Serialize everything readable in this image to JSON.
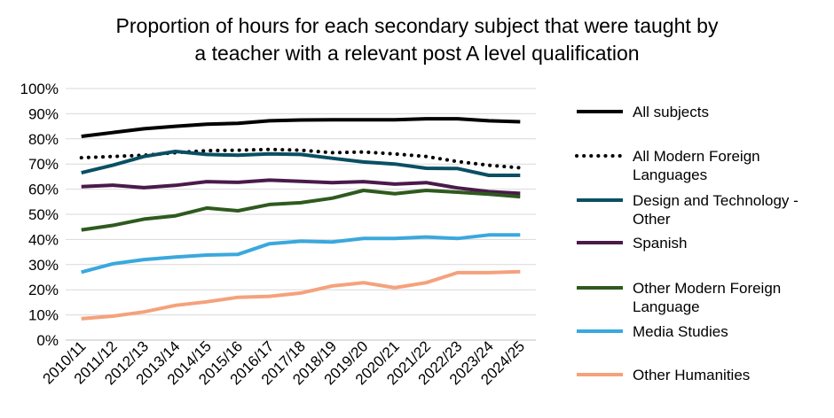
{
  "chart_data": {
    "type": "line",
    "title": [
      "Proportion of hours for each secondary subject that were taught by",
      "a teacher with a relevant post A level qualification"
    ],
    "xlabel": "",
    "ylabel": "",
    "ylim": [
      0,
      100
    ],
    "yticks": [
      "0%",
      "10%",
      "20%",
      "30%",
      "40%",
      "50%",
      "60%",
      "70%",
      "80%",
      "90%",
      "100%"
    ],
    "categories": [
      "2010/11",
      "2011/12",
      "2012/13",
      "2013/14",
      "2014/15",
      "2015/16",
      "2016/17",
      "2017/18",
      "2018/19",
      "2019/20",
      "2020/21",
      "2021/22",
      "2022/23",
      "2023/24",
      "2024/25"
    ],
    "grid": "horizontal",
    "legend_position": "right",
    "series": [
      {
        "name": "All subjects",
        "color": "#000000",
        "style": "solid",
        "legend_lines": [
          "All subjects"
        ],
        "values": [
          81,
          82.5,
          84,
          85,
          85.8,
          86.2,
          87.2,
          87.5,
          87.6,
          87.6,
          87.6,
          88,
          88,
          87.2,
          86.8
        ]
      },
      {
        "name": "All Modern Foreign Languages",
        "color": "#000000",
        "style": "dotted",
        "legend_lines": [
          "All Modern Foreign",
          "Languages"
        ],
        "values": [
          72.5,
          73,
          73.5,
          74.5,
          75.3,
          75.5,
          75.8,
          75.5,
          74.5,
          74.8,
          74,
          73,
          71,
          69.5,
          68.5
        ]
      },
      {
        "name": "Design and Technology - Other",
        "color": "#0a4f63",
        "style": "solid",
        "legend_lines": [
          "Design and Technology -",
          "Other"
        ],
        "values": [
          66.5,
          69.5,
          73,
          75,
          73.8,
          73.5,
          74,
          73.8,
          72.3,
          70.8,
          70,
          68.3,
          68.2,
          65.5,
          65.5
        ]
      },
      {
        "name": "Spanish",
        "color": "#4a1a4a",
        "style": "solid",
        "legend_lines": [
          "Spanish"
        ],
        "values": [
          61,
          61.6,
          60.6,
          61.5,
          63,
          62.7,
          63.6,
          63.1,
          62.6,
          63,
          62,
          62.6,
          60.5,
          59,
          58.3
        ]
      },
      {
        "name": "Other Modern Foreign Language",
        "color": "#2e5a1e",
        "style": "solid",
        "legend_lines": [
          "Other Modern Foreign",
          "Language"
        ],
        "values": [
          43.8,
          45.6,
          48.1,
          49.4,
          52.5,
          51.4,
          53.9,
          54.6,
          56.4,
          59.5,
          58.2,
          59.5,
          58.8,
          58,
          57
        ]
      },
      {
        "name": "Media Studies",
        "color": "#3aa8dd",
        "style": "solid",
        "legend_lines": [
          "Media Studies"
        ],
        "values": [
          27,
          30.3,
          32,
          33,
          33.8,
          34.1,
          38.3,
          39.3,
          39,
          40.4,
          40.4,
          41,
          40.4,
          41.8,
          41.8
        ]
      },
      {
        "name": "Other Humanities",
        "color": "#f4a27c",
        "style": "solid",
        "legend_lines": [
          "Other Humanities"
        ],
        "values": [
          8.5,
          9.5,
          11.2,
          13.8,
          15.2,
          17,
          17.4,
          18.7,
          21.5,
          22.8,
          20.8,
          22.8,
          26.8,
          26.8,
          27.2
        ]
      }
    ]
  }
}
